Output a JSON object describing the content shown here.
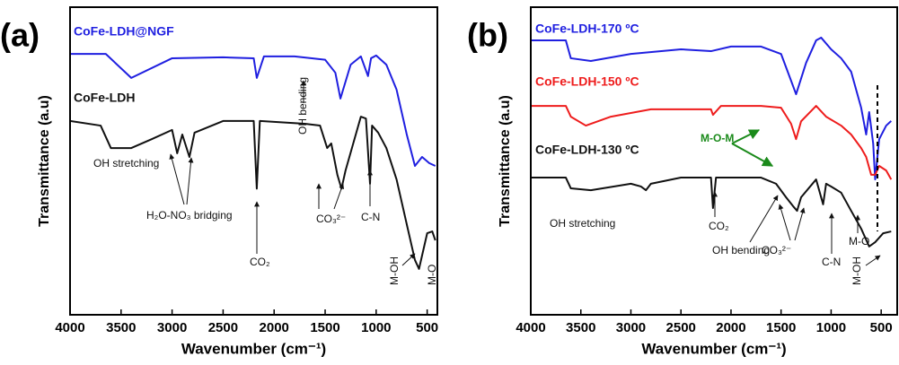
{
  "chart_data": [
    {
      "type": "line",
      "panel_label": "(a)",
      "xlabel": "Wavenumber (cm⁻¹)",
      "ylabel": "Transmittance (a.u)",
      "xlim": [
        4000,
        400
      ],
      "xticks": [
        4000,
        3500,
        3000,
        2500,
        2000,
        1500,
        1000,
        500
      ],
      "ylim": [
        0,
        100
      ],
      "series": [
        {
          "name": "CoFe-LDH@NGF",
          "color": "#1f1fe0",
          "x": [
            4000,
            3650,
            3400,
            3000,
            2500,
            2200,
            2170,
            2100,
            1800,
            1500,
            1400,
            1350,
            1250,
            1150,
            1080,
            1050,
            1000,
            900,
            800,
            700,
            620,
            550,
            480,
            420
          ],
          "values": [
            84.8,
            84.8,
            77,
            83.4,
            83.7,
            83.4,
            77,
            84,
            84,
            82.9,
            78.7,
            70.3,
            81.3,
            84,
            77.6,
            83.4,
            84.3,
            81.3,
            73.2,
            58.6,
            48.4,
            51.3,
            49.3,
            48.4
          ]
        },
        {
          "name": "CoFe-LDH",
          "color": "#111111",
          "x": [
            4000,
            3700,
            3600,
            3400,
            3200,
            3000,
            2950,
            2900,
            2830,
            2780,
            2500,
            2200,
            2170,
            2140,
            1700,
            1550,
            1480,
            1440,
            1380,
            1340,
            1300,
            1150,
            1100,
            1060,
            1040,
            980,
            900,
            800,
            700,
            620,
            580,
            500,
            450,
            420
          ],
          "values": [
            63,
            61.5,
            54.2,
            54.2,
            57.1,
            60.1,
            52.5,
            58.6,
            51.3,
            59.2,
            63,
            63,
            41,
            63,
            62.1,
            61.5,
            54.2,
            55.7,
            45.5,
            41,
            46.9,
            64.4,
            63.8,
            42.6,
            61.5,
            59.2,
            54.2,
            44,
            29.4,
            17.8,
            14.9,
            26.5,
            27.1,
            24.2
          ]
        }
      ],
      "annotations": [
        "OH stretching",
        "H₂O-NO₃ bridging",
        "CO₂",
        "OH bending",
        "CO₃²⁻",
        "C-N",
        "M-OH",
        "M-O"
      ]
    },
    {
      "type": "line",
      "panel_label": "(b)",
      "xlabel": "Wavenumber (cm⁻¹)",
      "ylabel": "Transmittance (a.u)",
      "xlim": [
        4000,
        340
      ],
      "xticks": [
        4000,
        3500,
        3000,
        2500,
        2000,
        1500,
        1000,
        500
      ],
      "ylim": [
        0,
        100
      ],
      "series": [
        {
          "name": "CoFe-LDH-170 ºC",
          "color": "#1f1fe0",
          "x": [
            4000,
            3650,
            3600,
            3400,
            3000,
            2500,
            2200,
            2000,
            1700,
            1500,
            1400,
            1350,
            1250,
            1150,
            1100,
            1000,
            900,
            800,
            700,
            650,
            620,
            580,
            560,
            520,
            450,
            400
          ],
          "values": [
            89.2,
            89.2,
            83.4,
            82.5,
            84.8,
            86.3,
            85.7,
            87.2,
            87.2,
            84.8,
            76.1,
            71.7,
            81.9,
            89.2,
            90.1,
            86.3,
            83.4,
            79,
            67.3,
            58.6,
            65.9,
            55.7,
            44,
            57.1,
            61.5,
            63
          ]
        },
        {
          "name": "CoFe-LDH-150 ºC",
          "color": "#ee1c1c",
          "x": [
            4000,
            3650,
            3600,
            3450,
            3200,
            2800,
            2200,
            2180,
            2100,
            1700,
            1500,
            1400,
            1350,
            1300,
            1150,
            1050,
            900,
            800,
            700,
            650,
            600,
            560,
            520,
            450,
            400
          ],
          "values": [
            67.9,
            67.9,
            64.4,
            61.5,
            64.4,
            66.8,
            66.8,
            65,
            67.9,
            67.9,
            67.3,
            62.1,
            57.1,
            62.9,
            67.9,
            64.4,
            61.5,
            58.6,
            54.2,
            51.3,
            45.5,
            45.5,
            48.4,
            46.9,
            44
          ]
        },
        {
          "name": "CoFe-LDH-130 ºC",
          "color": "#111111",
          "x": [
            4000,
            3650,
            3600,
            3400,
            3000,
            2900,
            2850,
            2800,
            2500,
            2200,
            2180,
            2150,
            1700,
            1550,
            1450,
            1380,
            1340,
            1300,
            1150,
            1080,
            1050,
            1000,
            900,
            800,
            700,
            620,
            560,
            480,
            400
          ],
          "values": [
            44.6,
            44.6,
            41.1,
            40.5,
            42.6,
            41.7,
            40.5,
            42.6,
            44.6,
            44.6,
            34.7,
            44.6,
            44.6,
            42.6,
            38.2,
            35.3,
            33.8,
            38.2,
            44,
            35.9,
            42.6,
            41.7,
            39.7,
            33.8,
            28,
            22.2,
            23.6,
            26.5,
            27.1
          ]
        }
      ],
      "annotations": [
        "M-O-M",
        "M-O",
        "OH stretching",
        "CO₂",
        "OH bending",
        "CO₃²⁻",
        "C-N",
        "M-OH"
      ]
    }
  ]
}
